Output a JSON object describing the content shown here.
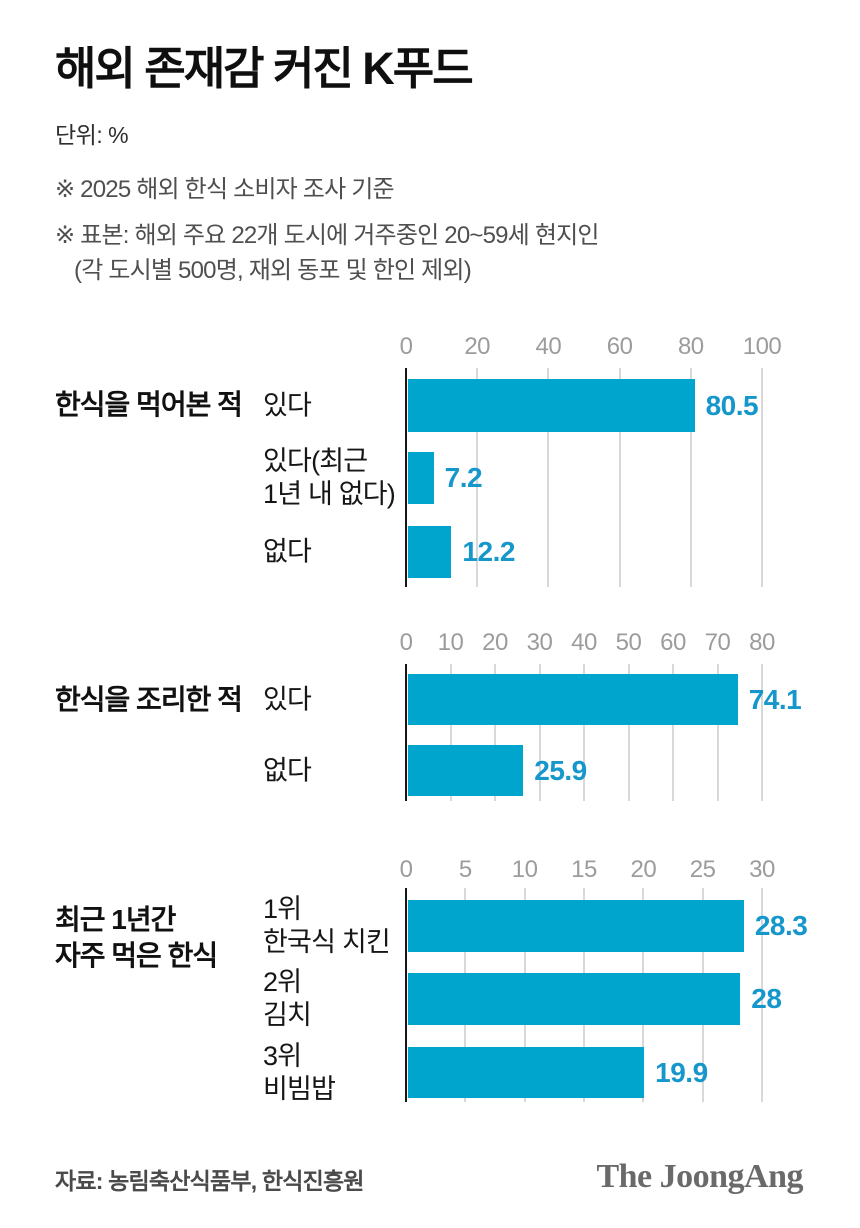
{
  "title": "해외 존재감 커진 K푸드",
  "unit_label": "단위: %",
  "notes": {
    "line1": "※ 2025 해외 한식 소비자 조사 기준",
    "line2": "※ 표본: 해외 주요 22개 도시에 거주중인 20~59세 현지인",
    "line3": "(각 도시별 500명, 재외 동포 및 한인 제외)"
  },
  "colors": {
    "bar": "#00A5CE",
    "value_label": "#1697CC",
    "axis_line": "#161616",
    "gridline": "#D8D8D8",
    "tick_label": "#9C9C9C",
    "title": "#0F0F0F",
    "note": "#4F4F4F",
    "source": "#4A4A4A",
    "logo": "#6A6A6A"
  },
  "footer": {
    "source": "자료: 농림축산식품부, 한식진흥원",
    "logo": "The JoongAng"
  },
  "chart_data": [
    {
      "type": "bar",
      "orientation": "horizontal",
      "group_label": "한식을 먹어본 적",
      "categories": [
        "있다",
        "있다(최근\n1년 내 없다)",
        "없다"
      ],
      "values": [
        80.5,
        7.2,
        12.2
      ],
      "value_labels": [
        "80.5",
        "7.2",
        "12.2"
      ],
      "unit": "%",
      "xlim": [
        0,
        100
      ],
      "ticks": [
        0,
        20,
        40,
        60,
        80,
        100
      ],
      "grid": true,
      "axis_position": "top",
      "legend": "none"
    },
    {
      "type": "bar",
      "orientation": "horizontal",
      "group_label": "한식을 조리한 적",
      "categories": [
        "있다",
        "없다"
      ],
      "values": [
        74.1,
        25.9
      ],
      "value_labels": [
        "74.1",
        "25.9"
      ],
      "unit": "%",
      "xlim": [
        0,
        80
      ],
      "ticks": [
        0,
        10,
        20,
        30,
        40,
        50,
        60,
        70,
        80
      ],
      "grid": true,
      "axis_position": "top",
      "legend": "none"
    },
    {
      "type": "bar",
      "orientation": "horizontal",
      "group_label": "최근 1년간\n자주 먹은 한식",
      "categories": [
        "1위\n한국식 치킨",
        "2위\n김치",
        "3위\n비빔밥"
      ],
      "values": [
        28.3,
        28,
        19.9
      ],
      "value_labels": [
        "28.3",
        "28",
        "19.9"
      ],
      "unit": "%",
      "xlim": [
        0,
        30
      ],
      "ticks": [
        0,
        5,
        10,
        15,
        20,
        25,
        30
      ],
      "grid": true,
      "axis_position": "top",
      "legend": "none"
    }
  ]
}
